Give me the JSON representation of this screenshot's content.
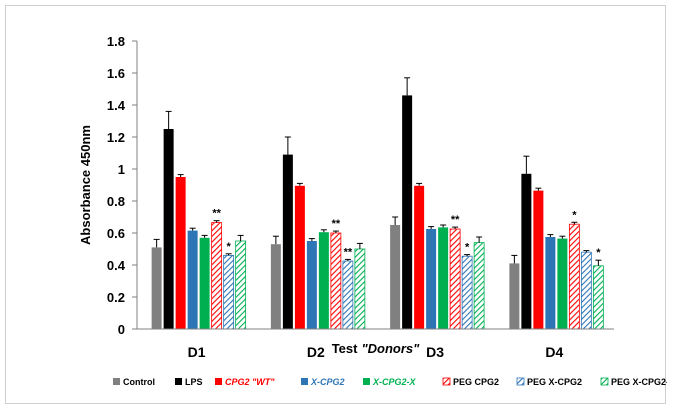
{
  "chart_data": {
    "type": "bar",
    "xlabel_main": "Test",
    "xlabel_italic": "\"Donors\"",
    "ylabel": "Absorbance 450nm",
    "ylim": [
      0,
      1.8
    ],
    "yticks": [
      0,
      0.2,
      0.4,
      0.6,
      0.8,
      1,
      1.2,
      1.4,
      1.6,
      1.8
    ],
    "ytick_labels": [
      "0",
      "0.2",
      "0.4",
      "0.6",
      "0.8",
      "1",
      "1.2",
      "1.4",
      "1.6",
      "1.8"
    ],
    "grid": false,
    "legend_position": "bottom",
    "categories": [
      "D1",
      "D2",
      "D3",
      "D4"
    ],
    "series": [
      {
        "name": "Control",
        "color": "#808080",
        "pattern": "solid",
        "label_color": "#000000",
        "label_italic": false,
        "values": [
          0.51,
          0.53,
          0.65,
          0.41
        ],
        "errors": [
          0.05,
          0.05,
          0.05,
          0.05
        ],
        "annotations": [
          "",
          "",
          "",
          ""
        ]
      },
      {
        "name": "LPS",
        "color": "#000000",
        "pattern": "solid",
        "label_color": "#000000",
        "label_italic": false,
        "values": [
          1.25,
          1.09,
          1.46,
          0.97
        ],
        "errors": [
          0.11,
          0.11,
          0.11,
          0.11
        ],
        "annotations": [
          "",
          "",
          "",
          ""
        ]
      },
      {
        "name": "CPG2 \"WT\"",
        "color": "#ff0000",
        "pattern": "solid",
        "label_color": "#ff0000",
        "label_italic": true,
        "values": [
          0.95,
          0.895,
          0.895,
          0.865
        ],
        "errors": [
          0.015,
          0.015,
          0.015,
          0.015
        ],
        "annotations": [
          "",
          "",
          "",
          ""
        ]
      },
      {
        "name": "X-CPG2",
        "color": "#2e75b6",
        "pattern": "solid",
        "label_color": "#2e75b6",
        "label_italic": true,
        "values": [
          0.615,
          0.55,
          0.625,
          0.575
        ],
        "errors": [
          0.015,
          0.015,
          0.015,
          0.015
        ],
        "annotations": [
          "",
          "",
          "",
          ""
        ]
      },
      {
        "name": "X-CPG2-X",
        "color": "#00b050",
        "pattern": "solid",
        "label_color": "#00b050",
        "label_italic": true,
        "values": [
          0.57,
          0.605,
          0.635,
          0.565
        ],
        "errors": [
          0.015,
          0.015,
          0.015,
          0.015
        ],
        "annotations": [
          "",
          "",
          "",
          ""
        ]
      },
      {
        "name": "PEG CPG2",
        "color": "#ff0000",
        "pattern": "hatch",
        "label_color": "#000000",
        "label_italic": false,
        "values": [
          0.665,
          0.6,
          0.625,
          0.655
        ],
        "errors": [
          0.012,
          0.012,
          0.012,
          0.012
        ],
        "annotations": [
          "**",
          "**",
          "**",
          "*"
        ]
      },
      {
        "name": "PEG X-CPG2",
        "color": "#2e75b6",
        "pattern": "hatch",
        "label_color": "#000000",
        "label_italic": false,
        "values": [
          0.46,
          0.425,
          0.455,
          0.48
        ],
        "errors": [
          0.01,
          0.01,
          0.01,
          0.01
        ],
        "annotations": [
          "*",
          "**",
          "*",
          ""
        ]
      },
      {
        "name": "PEG X-CPG2-X",
        "color": "#00b050",
        "pattern": "hatch",
        "label_color": "#000000",
        "label_italic": false,
        "values": [
          0.55,
          0.5,
          0.54,
          0.395
        ],
        "errors": [
          0.035,
          0.035,
          0.035,
          0.035
        ],
        "annotations": [
          "",
          "",
          "",
          "*"
        ]
      }
    ]
  }
}
